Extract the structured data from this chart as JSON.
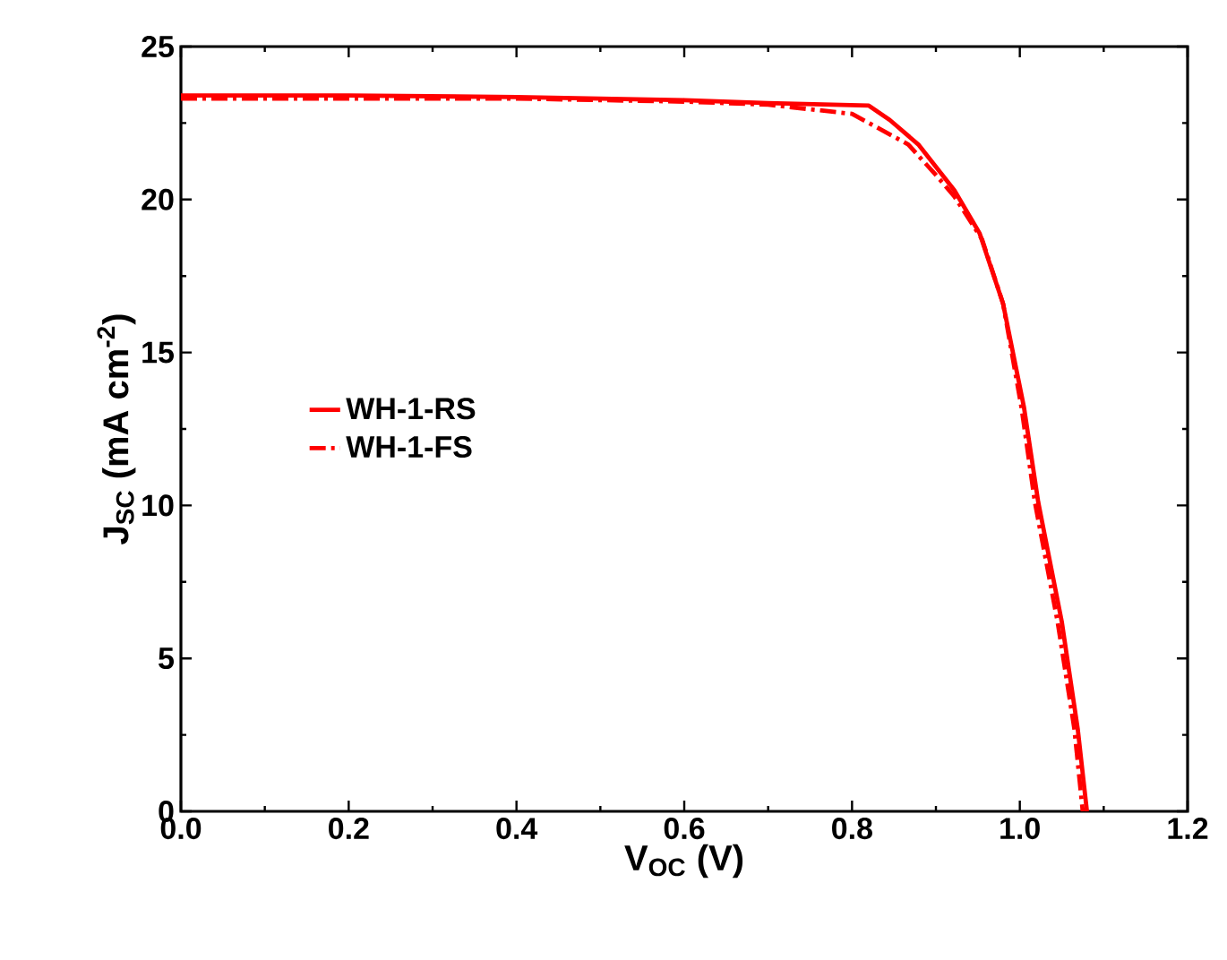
{
  "chart_data": {
    "type": "line",
    "xlabel": "V$_{OC}$ (V)",
    "ylabel": "J$_{SC}$ (mA cm$^{-2}$)",
    "xlim": [
      0,
      1.2
    ],
    "xticks": [
      {
        "value": 0,
        "label": "0.0"
      },
      0.2,
      0.4,
      0.6,
      0.8,
      {
        "value": 1,
        "label": "1.0"
      },
      1.2
    ],
    "ylim": [
      0,
      25
    ],
    "yticks": [
      0,
      5,
      10,
      15,
      20,
      25
    ],
    "legend": "left",
    "grid": false,
    "marker": "none",
    "series": [
      {
        "name": "WH-1-RS",
        "color": "#ff0000",
        "line_style": "solid",
        "x": [
          0,
          0.2,
          0.4,
          0.6,
          0.7,
          0.82,
          0.845,
          0.879,
          0.922,
          0.952,
          0.98,
          1.005,
          1.022,
          1.05,
          1.069,
          1.08
        ],
        "values": [
          23.4,
          23.4,
          23.35,
          23.25,
          23.15,
          23.07,
          22.6,
          21.8,
          20.3,
          18.9,
          16.6,
          13.2,
          10.1,
          6.2,
          2.7,
          0
        ]
      },
      {
        "name": "WH-1-FS",
        "color": "#ff0000",
        "line_style": "dashdotted",
        "x": [
          0,
          0.2,
          0.4,
          0.6,
          0.7,
          0.8,
          0.867,
          0.9,
          0.922,
          0.955,
          0.98,
          1.002,
          1.018,
          1.045,
          1.065,
          1.075
        ],
        "values": [
          23.3,
          23.3,
          23.3,
          23.2,
          23.1,
          22.8,
          21.8,
          20.8,
          20.1,
          18.7,
          16.6,
          13.2,
          10.1,
          6.2,
          2.7,
          0
        ]
      }
    ]
  }
}
